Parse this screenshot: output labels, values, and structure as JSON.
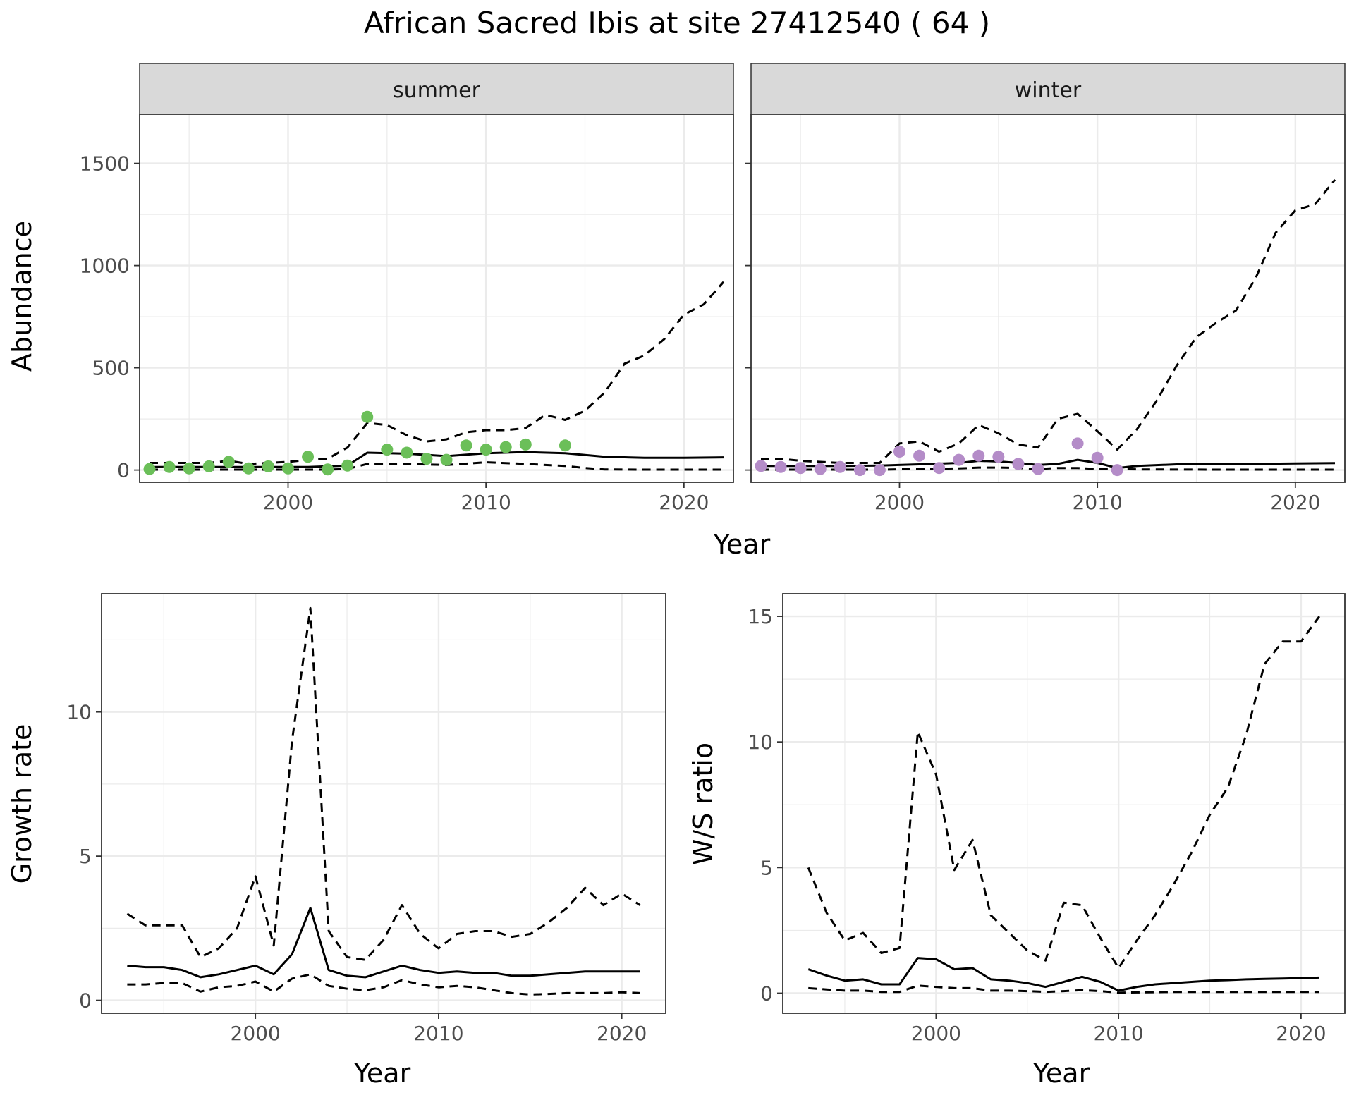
{
  "title": "African Sacred Ibis at site 27412540 ( 64 )",
  "colors": {
    "summer_points": "#6bbf59",
    "winter_points": "#b48cc8",
    "lines": "#000000",
    "strip": "#d9d9d9",
    "grid": "#ebebeb"
  },
  "chart_data": [
    {
      "type": "scatter",
      "panel": "summer",
      "strip_label": "summer",
      "xlabel": "Year",
      "ylabel": "Abundance",
      "xlim": [
        1992.5,
        2022.5
      ],
      "ylim": [
        -60,
        1740
      ],
      "xticks": [
        2000,
        2010,
        2020
      ],
      "yticks": [
        0,
        500,
        1000,
        1500
      ],
      "grid": true,
      "points": {
        "x": [
          1993,
          1994,
          1995,
          1996,
          1997,
          1998,
          1999,
          2000,
          2001,
          2002,
          2003,
          2004,
          2005,
          2006,
          2007,
          2008,
          2009,
          2010,
          2011,
          2012,
          2014
        ],
        "y": [
          5,
          15,
          8,
          18,
          40,
          8,
          18,
          8,
          65,
          3,
          22,
          260,
          100,
          85,
          55,
          50,
          120,
          100,
          112,
          125,
          120
        ]
      },
      "series": [
        {
          "style": "solid",
          "x": [
            1993,
            1995,
            1997,
            1999,
            2001,
            2003,
            2004,
            2006,
            2008,
            2010,
            2012,
            2014,
            2016,
            2018,
            2020,
            2022
          ],
          "y": [
            15,
            15,
            15,
            15,
            15,
            22,
            85,
            80,
            68,
            82,
            88,
            82,
            65,
            60,
            60,
            62
          ]
        },
        {
          "style": "dashed",
          "x": [
            1993,
            1994,
            1995,
            1996,
            1997,
            1998,
            1999,
            2000,
            2001,
            2002,
            2003,
            2004,
            2005,
            2006,
            2007,
            2008,
            2009,
            2010,
            2011,
            2012,
            2013,
            2014,
            2015,
            2016,
            2017,
            2018,
            2019,
            2020,
            2021,
            2022
          ],
          "y": [
            35,
            35,
            35,
            35,
            45,
            30,
            35,
            40,
            50,
            55,
            110,
            230,
            220,
            170,
            140,
            150,
            185,
            195,
            195,
            205,
            270,
            245,
            290,
            380,
            520,
            560,
            640,
            760,
            810,
            920
          ]
        },
        {
          "style": "dashed",
          "x": [
            1993,
            1996,
            1999,
            2002,
            2003,
            2004,
            2006,
            2008,
            2010,
            2012,
            2014,
            2015,
            2016,
            2018,
            2020,
            2022
          ],
          "y": [
            2,
            2,
            2,
            2,
            5,
            30,
            30,
            25,
            38,
            30,
            20,
            10,
            3,
            2,
            2,
            2
          ]
        }
      ]
    },
    {
      "type": "scatter",
      "panel": "winter",
      "strip_label": "winter",
      "xlabel": "Year",
      "ylabel": "Abundance",
      "xlim": [
        1992.5,
        2022.5
      ],
      "ylim": [
        -60,
        1740
      ],
      "xticks": [
        2000,
        2010,
        2020
      ],
      "yticks": [
        0,
        500,
        1000,
        1500
      ],
      "grid": true,
      "points": {
        "x": [
          1993,
          1994,
          1995,
          1996,
          1997,
          1998,
          1999,
          2000,
          2001,
          2002,
          2003,
          2004,
          2005,
          2006,
          2007,
          2009,
          2010,
          2011
        ],
        "y": [
          20,
          15,
          10,
          5,
          15,
          0,
          0,
          90,
          70,
          10,
          50,
          70,
          65,
          30,
          5,
          130,
          60,
          0
        ]
      },
      "series": [
        {
          "style": "solid",
          "x": [
            1993,
            1995,
            1997,
            1999,
            2001,
            2003,
            2004,
            2005,
            2006,
            2007,
            2008,
            2009,
            2010,
            2011,
            2012,
            2014,
            2016,
            2018,
            2020,
            2022
          ],
          "y": [
            20,
            20,
            20,
            22,
            28,
            35,
            45,
            42,
            35,
            25,
            30,
            50,
            35,
            10,
            20,
            28,
            30,
            30,
            32,
            34
          ]
        },
        {
          "style": "dashed",
          "x": [
            1993,
            1994,
            1995,
            1996,
            1997,
            1998,
            1999,
            2000,
            2001,
            2002,
            2003,
            2004,
            2005,
            2006,
            2007,
            2008,
            2009,
            2010,
            2011,
            2012,
            2013,
            2014,
            2015,
            2016,
            2017,
            2018,
            2019,
            2020,
            2021,
            2022
          ],
          "y": [
            55,
            55,
            45,
            40,
            35,
            35,
            35,
            130,
            140,
            90,
            130,
            220,
            180,
            125,
            110,
            250,
            275,
            190,
            100,
            200,
            340,
            510,
            650,
            720,
            780,
            940,
            1160,
            1270,
            1300,
            1420
          ]
        },
        {
          "style": "dashed",
          "x": [
            1993,
            1996,
            1999,
            2001,
            2003,
            2004,
            2005,
            2006,
            2007,
            2008,
            2009,
            2010,
            2012,
            2016,
            2020,
            2022
          ],
          "y": [
            2,
            2,
            2,
            5,
            8,
            12,
            12,
            10,
            5,
            10,
            10,
            5,
            3,
            2,
            2,
            2
          ]
        }
      ]
    },
    {
      "type": "line",
      "panel": "growth",
      "xlabel": "Year",
      "ylabel": "Growth rate",
      "xlim": [
        1991.6,
        2022.4
      ],
      "ylim": [
        -0.45,
        14.1
      ],
      "xticks": [
        2000,
        2010,
        2020
      ],
      "yticks": [
        0,
        5,
        10
      ],
      "grid": true,
      "series": [
        {
          "style": "solid",
          "x": [
            1993,
            1994,
            1995,
            1996,
            1997,
            1998,
            1999,
            2000,
            2001,
            2002,
            2003,
            2004,
            2005,
            2006,
            2007,
            2008,
            2009,
            2010,
            2011,
            2012,
            2013,
            2014,
            2015,
            2016,
            2017,
            2018,
            2019,
            2020,
            2021
          ],
          "y": [
            1.2,
            1.15,
            1.15,
            1.05,
            0.8,
            0.9,
            1.05,
            1.2,
            0.9,
            1.6,
            3.2,
            1.05,
            0.85,
            0.8,
            1.0,
            1.2,
            1.05,
            0.95,
            1.0,
            0.95,
            0.95,
            0.85,
            0.85,
            0.9,
            0.95,
            1.0,
            1.0,
            1.0,
            1.0
          ]
        },
        {
          "style": "dashed",
          "x": [
            1993,
            1994,
            1995,
            1996,
            1997,
            1998,
            1999,
            2000,
            2001,
            2002,
            2003,
            2004,
            2005,
            2006,
            2007,
            2008,
            2009,
            2010,
            2011,
            2012,
            2013,
            2014,
            2015,
            2016,
            2017,
            2018,
            2019,
            2020,
            2021
          ],
          "y": [
            3.0,
            2.6,
            2.6,
            2.6,
            1.5,
            1.8,
            2.5,
            4.3,
            1.9,
            9.0,
            13.6,
            2.4,
            1.5,
            1.4,
            2.1,
            3.3,
            2.3,
            1.8,
            2.3,
            2.4,
            2.4,
            2.2,
            2.3,
            2.7,
            3.2,
            3.9,
            3.3,
            3.7,
            3.3
          ]
        },
        {
          "style": "dashed",
          "x": [
            1993,
            1994,
            1995,
            1996,
            1997,
            1998,
            1999,
            2000,
            2001,
            2002,
            2003,
            2004,
            2005,
            2006,
            2007,
            2008,
            2009,
            2010,
            2011,
            2012,
            2013,
            2014,
            2015,
            2016,
            2017,
            2018,
            2019,
            2020,
            2021
          ],
          "y": [
            0.55,
            0.55,
            0.6,
            0.6,
            0.3,
            0.45,
            0.5,
            0.65,
            0.3,
            0.75,
            0.9,
            0.5,
            0.4,
            0.35,
            0.45,
            0.7,
            0.55,
            0.45,
            0.5,
            0.45,
            0.35,
            0.25,
            0.2,
            0.22,
            0.25,
            0.25,
            0.25,
            0.28,
            0.25
          ]
        }
      ]
    },
    {
      "type": "line",
      "panel": "ratio",
      "xlabel": "Year",
      "ylabel": "W/S ratio",
      "xlim": [
        1991.6,
        2022.4
      ],
      "ylim": [
        -0.8,
        15.9
      ],
      "xticks": [
        2000,
        2010,
        2020
      ],
      "yticks": [
        0,
        5,
        10,
        15
      ],
      "grid": true,
      "series": [
        {
          "style": "solid",
          "x": [
            1993,
            1994,
            1995,
            1996,
            1997,
            1998,
            1999,
            2000,
            2001,
            2002,
            2003,
            2004,
            2005,
            2006,
            2007,
            2008,
            2009,
            2010,
            2011,
            2012,
            2013,
            2014,
            2015,
            2016,
            2017,
            2018,
            2019,
            2020,
            2021
          ],
          "y": [
            0.95,
            0.7,
            0.5,
            0.55,
            0.35,
            0.35,
            1.4,
            1.35,
            0.95,
            1.0,
            0.55,
            0.5,
            0.4,
            0.25,
            0.45,
            0.65,
            0.45,
            0.1,
            0.25,
            0.35,
            0.4,
            0.45,
            0.5,
            0.52,
            0.55,
            0.57,
            0.58,
            0.6,
            0.62
          ]
        },
        {
          "style": "dashed",
          "x": [
            1993,
            1994,
            1995,
            1996,
            1997,
            1998,
            1999,
            2000,
            2001,
            2002,
            2003,
            2004,
            2005,
            2006,
            2007,
            2008,
            2009,
            2010,
            2011,
            2012,
            2013,
            2014,
            2015,
            2016,
            2017,
            2018,
            2019,
            2020,
            2021
          ],
          "y": [
            5.0,
            3.2,
            2.1,
            2.4,
            1.6,
            1.8,
            10.4,
            8.7,
            4.9,
            6.1,
            3.1,
            2.4,
            1.7,
            1.3,
            3.6,
            3.5,
            2.2,
            1.0,
            2.1,
            3.1,
            4.3,
            5.6,
            7.1,
            8.2,
            10.3,
            13.1,
            14.0,
            14.0,
            15.0
          ]
        },
        {
          "style": "dashed",
          "x": [
            1993,
            1994,
            1995,
            1996,
            1997,
            1998,
            1999,
            2000,
            2001,
            2002,
            2003,
            2004,
            2005,
            2006,
            2007,
            2008,
            2009,
            2010,
            2011,
            2012,
            2013,
            2014,
            2015,
            2016,
            2017,
            2018,
            2019,
            2020,
            2021
          ],
          "y": [
            0.2,
            0.15,
            0.1,
            0.1,
            0.05,
            0.05,
            0.3,
            0.25,
            0.2,
            0.2,
            0.1,
            0.1,
            0.08,
            0.05,
            0.08,
            0.12,
            0.08,
            0.02,
            0.03,
            0.04,
            0.05,
            0.05,
            0.05,
            0.05,
            0.05,
            0.05,
            0.05,
            0.05,
            0.05
          ]
        }
      ]
    }
  ]
}
